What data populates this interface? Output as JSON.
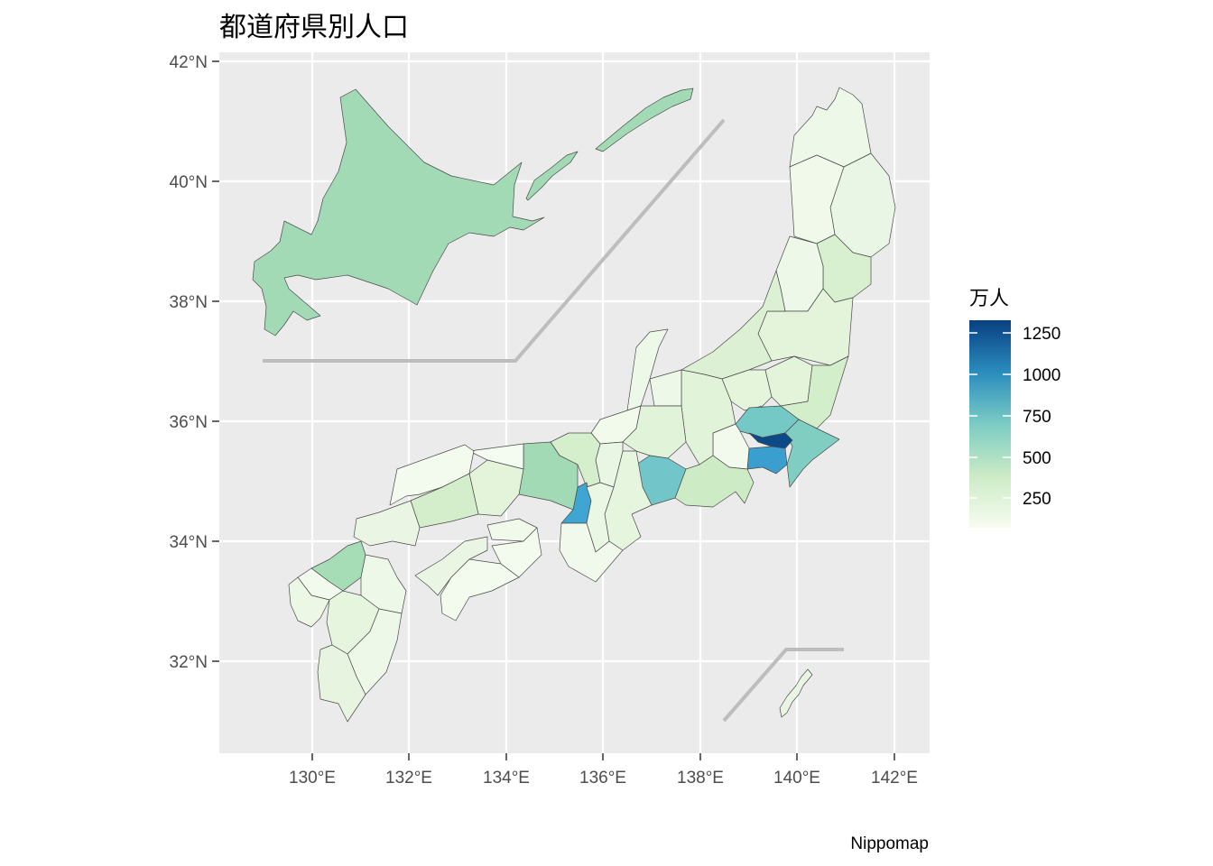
{
  "title": "都道府県別人口",
  "caption": "Nippomap",
  "chart_data": {
    "type": "choropleth",
    "title": "都道府県別人口",
    "x_ticks": [
      "130°E",
      "132°E",
      "134°E",
      "136°E",
      "138°E",
      "140°E",
      "142°E"
    ],
    "y_ticks": [
      "42°N",
      "40°N",
      "38°N",
      "36°N",
      "34°N",
      "32°N"
    ],
    "legend": {
      "title": "万人",
      "labels": [
        "1250",
        "1000",
        "750",
        "500",
        "250"
      ],
      "colors": [
        "#f7fcf0",
        "#ccebc5",
        "#7bccc4",
        "#2b8cbe",
        "#084081"
      ]
    },
    "regions": [
      {
        "name": "Hokkaido",
        "value": 538,
        "fill": "#a1dab4"
      },
      {
        "name": "Aomori",
        "value": 131,
        "fill": "#eef8e8"
      },
      {
        "name": "Iwate",
        "value": 128,
        "fill": "#eaf6e5"
      },
      {
        "name": "Miyagi",
        "value": 233,
        "fill": "#d8f0d0"
      },
      {
        "name": "Akita",
        "value": 102,
        "fill": "#f0f9ea"
      },
      {
        "name": "Yamagata",
        "value": 112,
        "fill": "#eef8e8"
      },
      {
        "name": "Fukushima",
        "value": 191,
        "fill": "#e3f4db"
      },
      {
        "name": "Ibaraki",
        "value": 292,
        "fill": "#d3eecb"
      },
      {
        "name": "Tochigi",
        "value": 197,
        "fill": "#e3f4db"
      },
      {
        "name": "Gunma",
        "value": 197,
        "fill": "#e4f5dc"
      },
      {
        "name": "Saitama",
        "value": 727,
        "fill": "#74c8c6"
      },
      {
        "name": "Chiba",
        "value": 622,
        "fill": "#80cdc1"
      },
      {
        "name": "Tokyo",
        "value": 1351,
        "fill": "#0b4a87"
      },
      {
        "name": "Kanagawa",
        "value": 913,
        "fill": "#3a9fcf"
      },
      {
        "name": "Niigata",
        "value": 230,
        "fill": "#dcf1d4"
      },
      {
        "name": "Toyama",
        "value": 107,
        "fill": "#eef8e9"
      },
      {
        "name": "Ishikawa",
        "value": 115,
        "fill": "#eef8e8"
      },
      {
        "name": "Fukui",
        "value": 79,
        "fill": "#f2faec"
      },
      {
        "name": "Yamanashi",
        "value": 83,
        "fill": "#f2faee"
      },
      {
        "name": "Nagano",
        "value": 210,
        "fill": "#e1f3d9"
      },
      {
        "name": "Gifu",
        "value": 203,
        "fill": "#e1f3d9"
      },
      {
        "name": "Shizuoka",
        "value": 370,
        "fill": "#cdebc4"
      },
      {
        "name": "Aichi",
        "value": 748,
        "fill": "#72c5c8"
      },
      {
        "name": "Mie",
        "value": 182,
        "fill": "#e5f5de"
      },
      {
        "name": "Shiga",
        "value": 141,
        "fill": "#e9f6e3"
      },
      {
        "name": "Kyoto",
        "value": 261,
        "fill": "#d5efcd"
      },
      {
        "name": "Osaka",
        "value": 884,
        "fill": "#3fa5d3"
      },
      {
        "name": "Hyogo",
        "value": 553,
        "fill": "#a1dab4"
      },
      {
        "name": "Nara",
        "value": 136,
        "fill": "#ebf7e5"
      },
      {
        "name": "Wakayama",
        "value": 96,
        "fill": "#f1f9ec"
      },
      {
        "name": "Tottori",
        "value": 57,
        "fill": "#f4fbf0"
      },
      {
        "name": "Shimane",
        "value": 69,
        "fill": "#f3faee"
      },
      {
        "name": "Okayama",
        "value": 192,
        "fill": "#e3f4db"
      },
      {
        "name": "Hiroshima",
        "value": 284,
        "fill": "#d4eecb"
      },
      {
        "name": "Yamaguchi",
        "value": 140,
        "fill": "#eaf6e3"
      },
      {
        "name": "Tokushima",
        "value": 76,
        "fill": "#f3faee"
      },
      {
        "name": "Kagawa",
        "value": 98,
        "fill": "#f0f9ea"
      },
      {
        "name": "Ehime",
        "value": 139,
        "fill": "#eaf6e3"
      },
      {
        "name": "Kochi",
        "value": 73,
        "fill": "#f3faee"
      },
      {
        "name": "Fukuoka",
        "value": 510,
        "fill": "#a6dcb6"
      },
      {
        "name": "Saga",
        "value": 83,
        "fill": "#f2faed"
      },
      {
        "name": "Nagasaki",
        "value": 138,
        "fill": "#ecf7e6"
      },
      {
        "name": "Kumamoto",
        "value": 179,
        "fill": "#e6f5de"
      },
      {
        "name": "Oita",
        "value": 117,
        "fill": "#eef8e8"
      },
      {
        "name": "Miyazaki",
        "value": 110,
        "fill": "#eef8e8"
      },
      {
        "name": "Kagoshima",
        "value": 165,
        "fill": "#e7f5e0"
      },
      {
        "name": "Okinawa",
        "value": 143,
        "fill": "#eaf6e3"
      }
    ]
  }
}
